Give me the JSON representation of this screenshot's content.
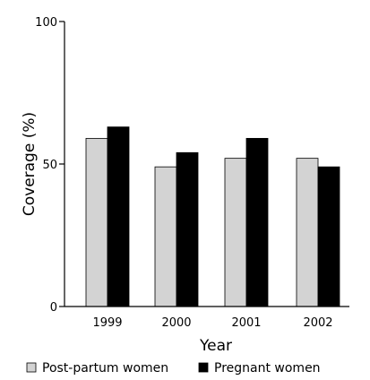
{
  "chart_data": {
    "type": "bar",
    "title": "",
    "xlabel": "Year",
    "ylabel": "Coverage (%)",
    "ylim": [
      0,
      100
    ],
    "yticks": [
      0,
      50,
      100
    ],
    "categories": [
      "1999",
      "2000",
      "2001",
      "2002"
    ],
    "series": [
      {
        "name": "Post-partum women",
        "values": [
          59,
          49,
          52,
          52
        ],
        "color": "#d3d3d3"
      },
      {
        "name": "Pregnant women",
        "values": [
          63,
          54,
          59,
          49
        ],
        "color": "#000000"
      }
    ],
    "legend_position": "bottom",
    "grid": false
  }
}
